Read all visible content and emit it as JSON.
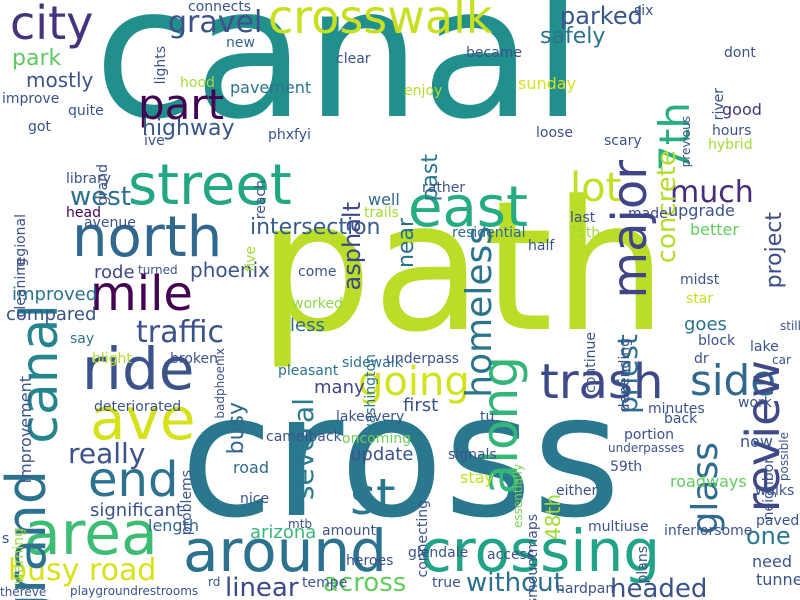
{
  "words": [
    {
      "text": "canal",
      "color": "#21908d"
    },
    {
      "text": "path",
      "color": "#bade28"
    },
    {
      "text": "cross",
      "color": "#2a788e"
    },
    {
      "text": "crossing",
      "color": "#20a386"
    },
    {
      "text": "around",
      "color": "#2c728e"
    },
    {
      "text": "crosswalk",
      "color": "#c8e020"
    },
    {
      "text": "street",
      "color": "#22a785"
    },
    {
      "text": "north",
      "color": "#31688e"
    },
    {
      "text": "east",
      "color": "#25ac82"
    },
    {
      "text": "mile",
      "color": "#440154"
    },
    {
      "text": "ride",
      "color": "#3b528b"
    },
    {
      "text": "ave",
      "color": "#d5e21a"
    },
    {
      "text": "area",
      "color": "#3dbc74"
    },
    {
      "text": "end",
      "color": "#2c728e"
    },
    {
      "text": "st",
      "color": "#2a788e"
    },
    {
      "text": "trash",
      "color": "#3e4989"
    },
    {
      "text": "going",
      "color": "#d2e21b"
    },
    {
      "text": "side",
      "color": "#31688e"
    },
    {
      "text": "city",
      "color": "#46337e"
    },
    {
      "text": "part",
      "color": "#440154"
    },
    {
      "text": "lot",
      "color": "#c2df23"
    },
    {
      "text": "busy road",
      "color": "#d8e219"
    },
    {
      "text": "grand",
      "color": "#2c728e"
    },
    {
      "text": "canal",
      "color": "#25858e"
    },
    {
      "text": "review",
      "color": "#3f4889"
    },
    {
      "text": "along",
      "color": "#34b679"
    },
    {
      "text": "major",
      "color": "#414487"
    },
    {
      "text": "7th",
      "color": "#29af7f"
    },
    {
      "text": "homeless",
      "color": "#2b748e"
    },
    {
      "text": "several",
      "color": "#297b8e"
    },
    {
      "text": "glass",
      "color": "#2f6b8e"
    },
    {
      "text": "much",
      "color": "#472d7b"
    },
    {
      "text": "traffic",
      "color": "#3b528b"
    },
    {
      "text": "highway",
      "color": "#39568c"
    },
    {
      "text": "west",
      "color": "#2d708e"
    },
    {
      "text": "intersection",
      "color": "#365c8d"
    },
    {
      "text": "gravel",
      "color": "#3b528b"
    },
    {
      "text": "parked",
      "color": "#3a548c"
    },
    {
      "text": "concrete",
      "color": "#b5de2b"
    },
    {
      "text": "project",
      "color": "#3e4c8a"
    },
    {
      "text": "priest",
      "color": "#2e6e8e"
    },
    {
      "text": "one",
      "color": "#2a788e"
    },
    {
      "text": "really",
      "color": "#3b528b"
    },
    {
      "text": "headed",
      "color": "#3b528b"
    },
    {
      "text": "linear",
      "color": "#3e4989"
    },
    {
      "text": "across",
      "color": "#63cb5f"
    },
    {
      "text": "without",
      "color": "#2d708e"
    },
    {
      "text": "asphalt",
      "color": "#3e4989"
    },
    {
      "text": "past",
      "color": "#2a788e"
    },
    {
      "text": "near",
      "color": "#2c728e"
    },
    {
      "text": "mostly",
      "color": "#3b528b"
    },
    {
      "text": "park",
      "color": "#5ec962"
    },
    {
      "text": "busy",
      "color": "#31688e"
    },
    {
      "text": "safely",
      "color": "#2c728e"
    },
    {
      "text": "sunday",
      "color": "#d8e219"
    },
    {
      "text": "upgrade",
      "color": "#3b528b"
    },
    {
      "text": "phoenix",
      "color": "#3b528b"
    },
    {
      "text": "rode",
      "color": "#3e4989"
    },
    {
      "text": "improved",
      "color": "#2c728e"
    },
    {
      "text": "compared",
      "color": "#3b528b"
    },
    {
      "text": "goes",
      "color": "#2c728e"
    },
    {
      "text": "star",
      "color": "#c2df23"
    },
    {
      "text": "better",
      "color": "#65cb5e"
    },
    {
      "text": "made",
      "color": "#3e4989"
    },
    {
      "text": "last",
      "color": "#3b528b"
    },
    {
      "text": "well",
      "color": "#31688e"
    },
    {
      "text": "update",
      "color": "#3b528b"
    },
    {
      "text": "first",
      "color": "#3b528b"
    },
    {
      "text": "many",
      "color": "#414487"
    },
    {
      "text": "road",
      "color": "#31688e"
    },
    {
      "text": "stay",
      "color": "#c2df23"
    },
    {
      "text": "work",
      "color": "#3b528b"
    },
    {
      "text": "now",
      "color": "#3b528b"
    },
    {
      "text": "significant",
      "color": "#3b528b"
    },
    {
      "text": "length",
      "color": "#31688e"
    },
    {
      "text": "arizona",
      "color": "#35b779"
    },
    {
      "text": "need",
      "color": "#3b528b"
    },
    {
      "text": "tunnels",
      "color": "#3b528b"
    },
    {
      "text": "roadways",
      "color": "#63cb5f"
    },
    {
      "text": "48th",
      "color": "#a2da37"
    },
    {
      "text": "washington",
      "color": "#2a788e"
    },
    {
      "text": "less",
      "color": "#31688e"
    },
    {
      "text": "pavement",
      "color": "#2c728e"
    },
    {
      "text": "new",
      "color": "#31688e"
    },
    {
      "text": "good",
      "color": "#46337e"
    },
    {
      "text": "hours",
      "color": "#3b528b"
    },
    {
      "text": "say",
      "color": "#2c728e"
    },
    {
      "text": "broken",
      "color": "#3b528b"
    },
    {
      "text": "pleasant",
      "color": "#2c728e"
    },
    {
      "text": "sidewalk",
      "color": "#2c728e"
    },
    {
      "text": "block",
      "color": "#3b528b"
    },
    {
      "text": "lake",
      "color": "#3b528b"
    },
    {
      "text": "still",
      "color": "#3b528b"
    },
    {
      "text": "car",
      "color": "#3b528b"
    },
    {
      "text": "dr",
      "color": "#3b528b"
    },
    {
      "text": "midst",
      "color": "#3b528b"
    },
    {
      "text": "continue",
      "color": "#3b528b"
    },
    {
      "text": "depending",
      "color": "#3b528b"
    },
    {
      "text": "underpass",
      "color": "#3b528b"
    },
    {
      "text": "worked",
      "color": "#8fd744"
    },
    {
      "text": "come",
      "color": "#3b528b"
    },
    {
      "text": "half",
      "color": "#3b528b"
    },
    {
      "text": "75th",
      "color": "#a2da37"
    },
    {
      "text": "residential",
      "color": "#31688e"
    },
    {
      "text": "rather",
      "color": "#3b528b"
    },
    {
      "text": "five",
      "color": "#a2da37"
    },
    {
      "text": "turned",
      "color": "#3b528b"
    },
    {
      "text": "blight",
      "color": "#b5de2b"
    },
    {
      "text": "deteriorated",
      "color": "#3b528b"
    },
    {
      "text": "improvement",
      "color": "#3b528b"
    },
    {
      "text": "lakeevery",
      "color": "#3b528b"
    },
    {
      "text": "essentially",
      "color": "#7ad151"
    },
    {
      "text": "minutes",
      "color": "#3b528b"
    },
    {
      "text": "back",
      "color": "#3b528b"
    },
    {
      "text": "portion",
      "color": "#3b528b"
    },
    {
      "text": "59th",
      "color": "#3b528b"
    },
    {
      "text": "either",
      "color": "#3b528b"
    },
    {
      "text": "walks",
      "color": "#3b528b"
    },
    {
      "text": "paved",
      "color": "#3b528b"
    },
    {
      "text": "neighbor",
      "color": "#3b528b"
    },
    {
      "text": "possible",
      "color": "#3b528b"
    },
    {
      "text": "underpasses",
      "color": "#3b528b"
    },
    {
      "text": "signals",
      "color": "#3b528b"
    },
    {
      "text": "dismountmaps",
      "color": "#3b528b"
    },
    {
      "text": "connecting",
      "color": "#3b528b"
    },
    {
      "text": "oncoming",
      "color": "#6ece58"
    },
    {
      "text": "camelback",
      "color": "#3b528b"
    },
    {
      "text": "nice",
      "color": "#3b528b"
    },
    {
      "text": "mtb",
      "color": "#3b528b"
    },
    {
      "text": "amount",
      "color": "#3b528b"
    },
    {
      "text": "glendale",
      "color": "#3b528b"
    },
    {
      "text": "access",
      "color": "#3b528b"
    },
    {
      "text": "multiuse",
      "color": "#3b528b"
    },
    {
      "text": "inferiorsome",
      "color": "#3b528b"
    },
    {
      "text": "plans",
      "color": "#3b528b"
    },
    {
      "text": "heroes",
      "color": "#3b528b"
    },
    {
      "text": "tempe",
      "color": "#3b528b"
    },
    {
      "text": "true",
      "color": "#3b528b"
    },
    {
      "text": "hardpan",
      "color": "#3b528b"
    },
    {
      "text": "rd",
      "color": "#3b528b"
    },
    {
      "text": "playgroundrestrooms",
      "color": "#3b528b"
    },
    {
      "text": "thereve",
      "color": "#3b528b"
    },
    {
      "text": "warning",
      "color": "#a2da37"
    },
    {
      "text": "s",
      "color": "#3b528b"
    },
    {
      "text": "problems",
      "color": "#3b528b"
    },
    {
      "text": "badphoenix",
      "color": "#3b528b"
    },
    {
      "text": "tu",
      "color": "#3b528b"
    },
    {
      "text": "previous",
      "color": "#3b528b"
    },
    {
      "text": "hybrid",
      "color": "#a2da37"
    },
    {
      "text": "scary",
      "color": "#3b528b"
    },
    {
      "text": "loose",
      "color": "#3b528b"
    },
    {
      "text": "river",
      "color": "#3b528b"
    },
    {
      "text": "enjoy",
      "color": "#b5de2b"
    },
    {
      "text": "hood",
      "color": "#a2da37"
    },
    {
      "text": "became",
      "color": "#3b528b"
    },
    {
      "text": "trails",
      "color": "#a2da37"
    },
    {
      "text": "clear",
      "color": "#3b528b"
    },
    {
      "text": "phxfyi",
      "color": "#3b528b"
    },
    {
      "text": "reach",
      "color": "#3b528b"
    },
    {
      "text": "grand",
      "color": "#3b528b"
    },
    {
      "text": "regional",
      "color": "#3b528b"
    },
    {
      "text": "cleaning",
      "color": "#3b528b"
    },
    {
      "text": "library",
      "color": "#3b528b"
    },
    {
      "text": "head",
      "color": "#440154"
    },
    {
      "text": "avenue",
      "color": "#3b528b"
    },
    {
      "text": "ive",
      "color": "#3b528b"
    },
    {
      "text": "got",
      "color": "#3b528b"
    },
    {
      "text": "quite",
      "color": "#3b528b"
    },
    {
      "text": "improve",
      "color": "#3b528b"
    },
    {
      "text": "lights",
      "color": "#3b528b"
    },
    {
      "text": "connects",
      "color": "#3b528b"
    },
    {
      "text": "six",
      "color": "#3b528b"
    },
    {
      "text": "dont",
      "color": "#3b528b"
    }
  ]
}
